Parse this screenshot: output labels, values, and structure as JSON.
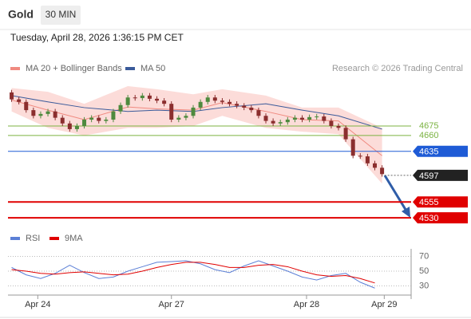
{
  "chart_data": [
    {
      "type": "candlestick",
      "title": "Gold",
      "timeframe": "30 MIN",
      "timestamp": "Tuesday, April 28, 2026 1:36:15 PM CET",
      "source": "Research © 2026 Trading Central",
      "up_color": "#4e8a3e",
      "down_color": "#8b2e2e",
      "open": [
        4728,
        4717,
        4713,
        4700,
        4691,
        4694,
        4698,
        4688,
        4679,
        4670,
        4675,
        4685,
        4688,
        4683,
        4685,
        4698,
        4708,
        4720,
        4719,
        4723,
        4718,
        4715,
        4710,
        4685,
        4688,
        4691,
        4704,
        4713,
        4720,
        4715,
        4713,
        4710,
        4707,
        4704,
        4700,
        4691,
        4683,
        4679,
        4681,
        4685,
        4688,
        4685,
        4689,
        4690,
        4683,
        4675,
        4672,
        4654,
        4628,
        4627,
        4616,
        4609
      ],
      "high": [
        4732,
        4721,
        4717,
        4704,
        4698,
        4702,
        4702,
        4692,
        4683,
        4679,
        4689,
        4692,
        4692,
        4689,
        4702,
        4712,
        4724,
        4724,
        4727,
        4727,
        4722,
        4719,
        4714,
        4692,
        4695,
        4708,
        4717,
        4724,
        4724,
        4719,
        4717,
        4714,
        4711,
        4708,
        4704,
        4695,
        4687,
        4685,
        4689,
        4692,
        4692,
        4693,
        4694,
        4694,
        4687,
        4679,
        4676,
        4658,
        4632,
        4631,
        4620,
        4613
      ],
      "low": [
        4713,
        4709,
        4696,
        4687,
        4687,
        4690,
        4684,
        4675,
        4666,
        4666,
        4671,
        4681,
        4679,
        4679,
        4681,
        4694,
        4704,
        4715,
        4715,
        4714,
        4711,
        4706,
        4681,
        4681,
        4684,
        4687,
        4700,
        4709,
        4711,
        4709,
        4706,
        4703,
        4700,
        4696,
        4687,
        4679,
        4675,
        4675,
        4677,
        4681,
        4681,
        4681,
        4685,
        4679,
        4671,
        4668,
        4650,
        4624,
        4623,
        4612,
        4605,
        4595
      ],
      "close": [
        4717,
        4713,
        4700,
        4691,
        4694,
        4698,
        4688,
        4679,
        4670,
        4675,
        4685,
        4688,
        4683,
        4685,
        4698,
        4708,
        4720,
        4719,
        4723,
        4718,
        4715,
        4710,
        4685,
        4688,
        4691,
        4704,
        4713,
        4720,
        4715,
        4713,
        4710,
        4707,
        4704,
        4700,
        4691,
        4683,
        4679,
        4681,
        4685,
        4688,
        4685,
        4689,
        4690,
        4683,
        4675,
        4672,
        4654,
        4628,
        4627,
        4616,
        4609,
        4599
      ],
      "series": [
        {
          "name": "MA 20 + Bollinger Bands",
          "color": "#f08a80",
          "band_color": "#fbd3d0",
          "x": [
            0,
            5,
            10,
            16,
            20,
            25,
            29,
            35,
            40,
            45,
            51
          ],
          "values": [
            4716,
            4700,
            4685,
            4705,
            4702,
            4700,
            4712,
            4698,
            4685,
            4683,
            4628
          ],
          "upper": [
            4735,
            4729,
            4710,
            4738,
            4733,
            4725,
            4733,
            4723,
            4704,
            4704,
            4672
          ],
          "lower": [
            4698,
            4672,
            4660,
            4672,
            4672,
            4675,
            4691,
            4672,
            4666,
            4662,
            4584
          ]
        },
        {
          "name": "MA 50",
          "color": "#3a5a9a",
          "x": [
            0,
            5,
            10,
            16,
            20,
            25,
            29,
            35,
            40,
            45,
            51
          ],
          "values": [
            4723,
            4713,
            4704,
            4698,
            4700,
            4698,
            4704,
            4710,
            4700,
            4691,
            4670
          ]
        }
      ],
      "levels": [
        {
          "value": 4675,
          "color": "#7cb342",
          "label_box": false,
          "line_style": "solid"
        },
        {
          "value": 4660,
          "color": "#7cb342",
          "label_box": false,
          "line_style": "solid"
        },
        {
          "value": 4635,
          "color": "#1e5bd6",
          "label_box": true,
          "line_style": "solid"
        },
        {
          "value": 4597,
          "color": "#222222",
          "label_box": true,
          "line_style": "dotted"
        },
        {
          "value": 4555,
          "color": "#e00000",
          "label_box": true,
          "line_style": "solid"
        },
        {
          "value": 4530,
          "color": "#e00000",
          "label_box": true,
          "line_style": "solid"
        }
      ],
      "xlim": [
        -0.5,
        55
      ],
      "ylim": [
        4515,
        4748
      ],
      "xticks": [
        {
          "value": 3.6,
          "label": "Apr 24"
        },
        {
          "value": 22.0,
          "label": "Apr 27"
        },
        {
          "value": 40.6,
          "label": "Apr 28"
        },
        {
          "value": 51.3,
          "label": "Apr 29"
        }
      ]
    },
    {
      "type": "line",
      "series": [
        {
          "name": "RSI",
          "color": "#5b7fd6",
          "x": [
            0,
            2,
            4,
            6,
            8,
            10,
            12,
            14,
            16,
            18,
            20,
            22,
            24,
            26,
            28,
            30,
            32,
            34,
            36,
            38,
            40,
            42,
            44,
            46,
            48,
            50
          ],
          "values": [
            55,
            45,
            40,
            47,
            58,
            48,
            40,
            42,
            50,
            56,
            62,
            63,
            64,
            60,
            52,
            48,
            57,
            64,
            57,
            50,
            42,
            38,
            44,
            47,
            35,
            27
          ]
        },
        {
          "name": "9MA",
          "color": "#e00000",
          "x": [
            0,
            2,
            4,
            6,
            8,
            10,
            12,
            14,
            16,
            18,
            20,
            22,
            24,
            26,
            28,
            30,
            32,
            34,
            36,
            38,
            40,
            42,
            44,
            46,
            48,
            50
          ],
          "values": [
            52,
            50,
            47,
            46,
            48,
            49,
            47,
            45,
            46,
            50,
            55,
            59,
            62,
            62,
            59,
            55,
            55,
            58,
            59,
            56,
            50,
            45,
            43,
            44,
            40,
            34
          ]
        }
      ],
      "xlim": [
        -0.5,
        55
      ],
      "ylim": [
        20,
        80
      ],
      "yticks": [
        70,
        50,
        30
      ],
      "grid": true
    }
  ]
}
